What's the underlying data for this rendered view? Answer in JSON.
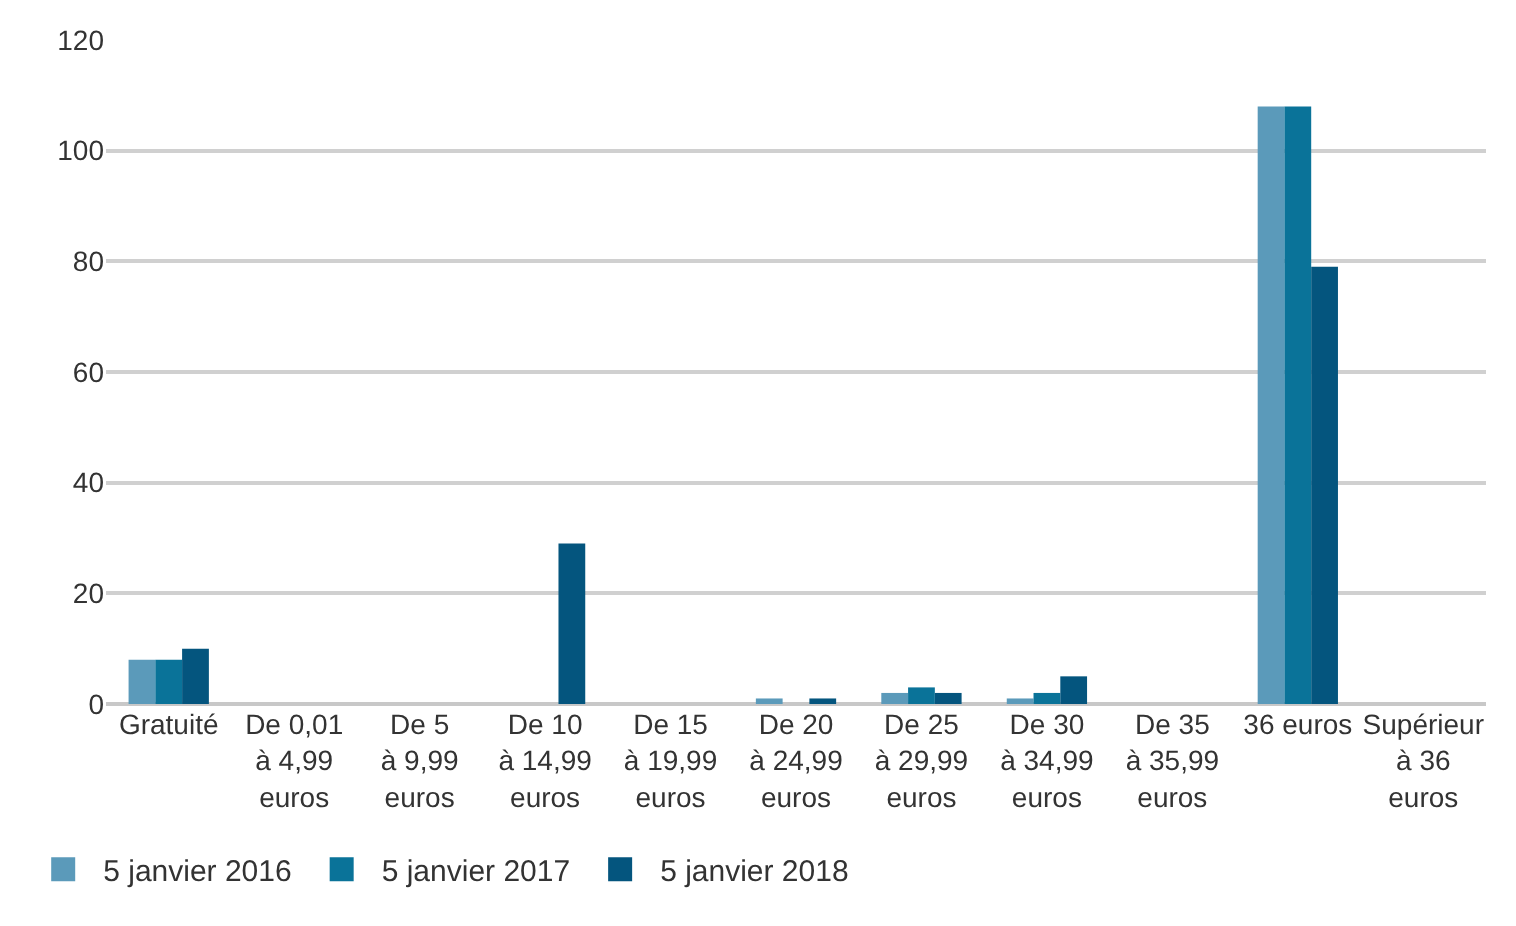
{
  "chart_data": {
    "type": "bar",
    "categories": [
      "Gratuité",
      "De 0,01\nà 4,99\neuros",
      "De 5\nà 9,99\neuros",
      "De 10\nà 14,99\neuros",
      "De 15\nà 19,99\neuros",
      "De 20\nà 24,99\neuros",
      "De 25\nà 29,99\neuros",
      "De 30\nà 34,99\neuros",
      "De 35\nà 35,99\neuros",
      "36 euros",
      "Supérieur\nà 36\neuros"
    ],
    "series": [
      {
        "name": "5 janvier 2016",
        "color": "#5b9aba",
        "values": [
          8,
          0,
          0,
          0,
          0,
          1,
          2,
          1,
          0,
          108,
          0
        ]
      },
      {
        "name": "5 janvier 2017",
        "color": "#0a7399",
        "values": [
          8,
          0,
          0,
          0,
          0,
          0,
          3,
          2,
          0,
          108,
          0
        ]
      },
      {
        "name": "5 janvier 2018",
        "color": "#04557e",
        "values": [
          10,
          0,
          0,
          29,
          0,
          1,
          2,
          5,
          0,
          79,
          0
        ]
      }
    ],
    "ylim": [
      0,
      120
    ],
    "yticks": [
      0,
      20,
      40,
      60,
      80,
      100,
      120
    ],
    "grid": "y",
    "legend": "bottom left"
  }
}
